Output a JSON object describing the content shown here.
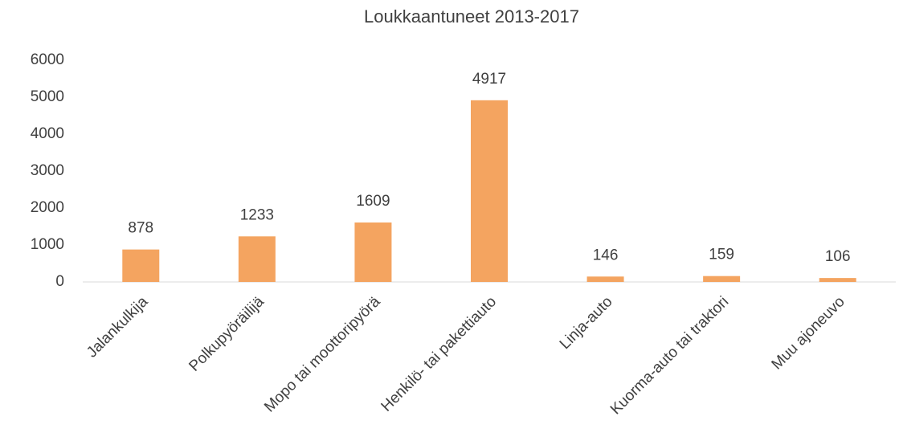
{
  "chart_data": {
    "type": "bar",
    "title": "Loukkaantuneet 2013-2017",
    "categories": [
      "Jalankulkija",
      "Polkupyöräilijä",
      "Mopo tai moottoripyörä",
      "Henkilö- tai pakettiauto",
      "Linja-auto",
      "Kuorma-auto tai traktori",
      "Muu ajoneuvo"
    ],
    "values": [
      878,
      1233,
      1609,
      4917,
      146,
      159,
      106
    ],
    "color": "#f4a460",
    "ylim": [
      0,
      6000
    ],
    "yticks": [
      0,
      1000,
      2000,
      3000,
      4000,
      5000,
      6000
    ],
    "grid": false,
    "data_labels": true
  }
}
